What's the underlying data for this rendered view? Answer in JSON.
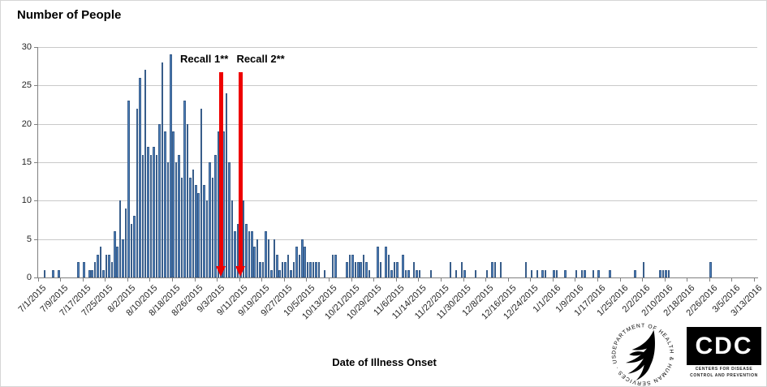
{
  "chart_data": {
    "type": "bar",
    "title": "Number of People",
    "xlabel": "Date of Illness Onset",
    "ylabel": "Number of People",
    "ylim": [
      0,
      30
    ],
    "yticks": [
      0,
      5,
      10,
      15,
      20,
      25,
      30
    ],
    "grid": "horizontal",
    "legend": "none",
    "start_date": "7/1/2015",
    "end_date": "3/13/2016",
    "x_tick_interval_days": 8,
    "x_tick_labels": [
      "7/1/2015",
      "7/9/2015",
      "7/17/2015",
      "7/25/2015",
      "8/2/2015",
      "8/10/2015",
      "8/18/2015",
      "8/26/2015",
      "9/3/2015",
      "9/11/2015",
      "9/19/2015",
      "9/27/2015",
      "10/5/2015",
      "10/13/2015",
      "10/21/2015",
      "10/29/2015",
      "11/6/2015",
      "11/14/2015",
      "11/22/2015",
      "11/30/2015",
      "12/8/2015",
      "12/16/2015",
      "12/24/2015",
      "1/1/2016",
      "1/9/2016",
      "1/17/2016",
      "1/25/2016",
      "2/2/2016",
      "2/10/2016",
      "2/18/2016",
      "2/26/2016",
      "3/5/2016",
      "3/13/2016"
    ],
    "values": [
      0,
      0,
      1,
      0,
      0,
      1,
      0,
      1,
      0,
      0,
      0,
      0,
      0,
      0,
      2,
      0,
      2,
      0,
      1,
      1,
      2,
      3,
      4,
      1,
      3,
      3,
      2,
      6,
      4,
      10,
      5,
      9,
      23,
      7,
      8,
      22,
      26,
      16,
      27,
      17,
      16,
      17,
      16,
      20,
      28,
      19,
      15,
      29,
      19,
      15,
      16,
      13,
      23,
      20,
      13,
      14,
      12,
      11,
      22,
      12,
      10,
      15,
      13,
      16,
      19,
      17,
      19,
      24,
      15,
      10,
      6,
      7,
      6,
      10,
      7,
      6,
      6,
      4,
      5,
      2,
      2,
      6,
      5,
      1,
      5,
      3,
      1,
      2,
      2,
      3,
      1,
      2,
      4,
      3,
      5,
      4,
      2,
      2,
      2,
      2,
      2,
      0,
      1,
      0,
      0,
      3,
      3,
      0,
      0,
      0,
      2,
      3,
      3,
      2,
      2,
      2,
      3,
      2,
      1,
      0,
      0,
      4,
      2,
      0,
      4,
      3,
      1,
      2,
      2,
      0,
      3,
      1,
      1,
      0,
      2,
      1,
      1,
      0,
      0,
      0,
      1,
      0,
      0,
      0,
      0,
      0,
      0,
      2,
      0,
      1,
      0,
      2,
      1,
      0,
      0,
      0,
      1,
      0,
      0,
      0,
      1,
      0,
      2,
      2,
      0,
      2,
      0,
      0,
      0,
      0,
      0,
      0,
      0,
      0,
      2,
      0,
      1,
      0,
      1,
      0,
      1,
      1,
      0,
      0,
      1,
      1,
      0,
      0,
      1,
      0,
      0,
      0,
      1,
      0,
      1,
      1,
      0,
      0,
      1,
      0,
      1,
      0,
      0,
      0,
      1,
      0,
      0,
      0,
      0,
      0,
      0,
      0,
      0,
      1,
      0,
      0,
      2,
      0,
      0,
      0,
      0,
      0,
      1,
      1,
      1,
      1,
      0,
      0,
      0,
      0,
      0,
      0,
      0,
      0,
      0,
      0,
      0,
      0,
      0,
      0,
      2,
      0,
      0,
      0,
      0,
      0,
      0,
      0,
      0,
      0,
      0,
      0,
      0,
      0,
      0,
      0,
      0
    ],
    "annotations": [
      {
        "label": "Recall 1**",
        "slot_index": 65
      },
      {
        "label": "Recall 2**",
        "slot_index": 72
      }
    ],
    "colors": {
      "bar_fill": "#4F81BD",
      "bar_border": "#385D8A",
      "arrow": "#EE0000",
      "gridline": "#C9C9C9",
      "axis": "#808080",
      "text": "#000000"
    }
  },
  "logos": {
    "hhs": {
      "ring_text": "DEPARTMENT OF HEALTH & HUMAN SERVICES · USA"
    },
    "cdc": {
      "acronym": "CDC",
      "line1": "CENTERS FOR DISEASE",
      "line2": "CONTROL AND PREVENTION"
    }
  }
}
